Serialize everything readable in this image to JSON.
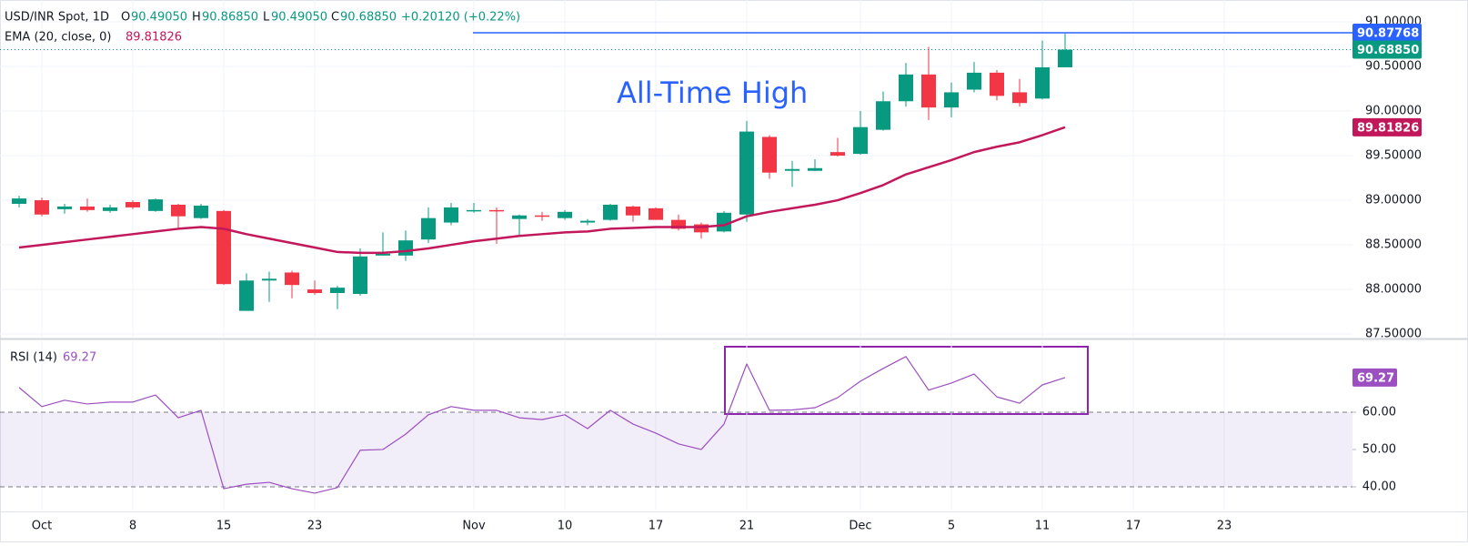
{
  "header": {
    "symbol": "USD/INR Spot, 1D",
    "o": "O",
    "open": "90.49050",
    "h": "H",
    "high": "90.86850",
    "l": "L",
    "low": "90.49050",
    "c": "C",
    "close": "90.68850",
    "change": "+0.20120 (+0.22%)"
  },
  "chart_data": [
    {
      "type": "candlestick",
      "categories": [
        null,
        "Oct",
        null,
        null,
        null,
        "8",
        null,
        null,
        null,
        "15",
        null,
        null,
        null,
        "23",
        null,
        null,
        null,
        null,
        null,
        null,
        "Nov",
        null,
        null,
        null,
        "10",
        null,
        null,
        null,
        "17",
        null,
        null,
        null,
        "21",
        null,
        null,
        null,
        null,
        "Dec",
        null,
        null,
        null,
        "5",
        null,
        null,
        null,
        "11",
        null,
        null,
        null,
        "17",
        null,
        null,
        null,
        "23"
      ],
      "open": [
        88.96,
        89.0,
        88.9,
        88.93,
        88.88,
        88.98,
        88.88,
        88.95,
        88.8,
        88.88,
        87.76,
        88.1,
        88.19,
        88.0,
        87.96,
        87.95,
        88.38,
        88.38,
        88.56,
        88.75,
        88.88,
        88.89,
        88.79,
        88.83,
        88.8,
        88.75,
        88.78,
        88.93,
        88.91,
        88.78,
        88.73,
        88.65,
        88.84,
        89.71,
        89.33,
        89.33,
        89.54,
        89.52,
        89.79,
        90.11,
        90.41,
        90.04,
        90.24,
        90.43,
        90.21,
        90.14,
        90.4905,
        null,
        null,
        null,
        null,
        null,
        null,
        null
      ],
      "high": [
        89.05,
        89.03,
        88.96,
        89.02,
        88.95,
        89.0,
        89.02,
        88.96,
        88.96,
        88.89,
        88.18,
        88.2,
        88.21,
        88.1,
        88.04,
        88.46,
        88.64,
        88.66,
        88.92,
        88.97,
        88.97,
        88.92,
        88.84,
        88.87,
        88.89,
        88.79,
        88.96,
        88.94,
        88.92,
        88.84,
        88.75,
        88.88,
        89.89,
        89.73,
        89.44,
        89.46,
        89.7,
        90.0,
        90.22,
        90.54,
        90.72,
        90.32,
        90.55,
        90.46,
        90.36,
        90.79,
        90.8685,
        null,
        null,
        null,
        null,
        null,
        null,
        null
      ],
      "low": [
        88.92,
        88.82,
        88.85,
        88.87,
        88.86,
        88.9,
        88.87,
        88.68,
        88.79,
        88.05,
        87.76,
        87.86,
        87.9,
        87.94,
        87.78,
        87.93,
        88.38,
        88.32,
        88.52,
        88.72,
        88.86,
        88.51,
        88.6,
        88.77,
        88.78,
        88.72,
        88.77,
        88.76,
        88.78,
        88.66,
        88.57,
        88.64,
        88.76,
        89.24,
        89.15,
        89.33,
        89.49,
        89.51,
        89.78,
        90.05,
        89.9,
        89.93,
        90.21,
        90.12,
        90.05,
        90.13,
        90.4905,
        null,
        null,
        null,
        null,
        null,
        null,
        null
      ],
      "close": [
        89.02,
        88.84,
        88.93,
        88.89,
        88.92,
        88.92,
        89.01,
        88.82,
        88.94,
        88.06,
        88.1,
        88.12,
        88.05,
        87.96,
        88.02,
        88.37,
        88.4,
        88.55,
        88.8,
        88.92,
        88.89,
        88.88,
        88.83,
        88.82,
        88.87,
        88.77,
        88.95,
        88.83,
        88.78,
        88.68,
        88.64,
        88.86,
        89.77,
        89.31,
        89.35,
        89.36,
        89.5,
        89.82,
        90.11,
        90.41,
        90.04,
        90.21,
        90.43,
        90.17,
        90.09,
        90.49,
        90.6885,
        null,
        null,
        null,
        null,
        null,
        null,
        null
      ],
      "up_color": "#089981",
      "down_color": "#f23645",
      "series": [
        {
          "name": "EMA (20, close, 0)",
          "color": "#c2185b",
          "values": [
            88.47,
            88.5,
            88.53,
            88.56,
            88.59,
            88.62,
            88.65,
            88.68,
            88.7,
            88.68,
            88.62,
            88.57,
            88.52,
            88.47,
            88.42,
            88.41,
            88.41,
            88.43,
            88.46,
            88.5,
            88.54,
            88.57,
            88.6,
            88.62,
            88.64,
            88.65,
            88.68,
            88.69,
            88.7,
            88.7,
            88.7,
            88.72,
            88.82,
            88.87,
            88.91,
            88.95,
            89.0,
            89.08,
            89.17,
            89.29,
            89.37,
            89.45,
            89.54,
            89.6,
            89.65,
            89.73,
            89.81826,
            null,
            null,
            null,
            null,
            null,
            null,
            null
          ],
          "last": {
            "value": 89.81826,
            "label": "89.81826"
          }
        }
      ],
      "last_close": {
        "value": 90.6885,
        "label": "90.68850"
      },
      "high_line": {
        "value": 90.87768,
        "label": "90.87768",
        "color": "#2962ff"
      },
      "annotation": "All-Time High",
      "ylim": [
        87.45,
        91.245
      ],
      "yticks": [
        {
          "value": 87.5,
          "label": "87.50000"
        },
        {
          "value": 88.0,
          "label": "88.00000"
        },
        {
          "value": 88.5,
          "label": "88.50000"
        },
        {
          "value": 89.0,
          "label": "89.00000"
        },
        {
          "value": 89.5,
          "label": "89.50000"
        },
        {
          "value": 90.0,
          "label": "90.00000"
        },
        {
          "value": 90.5,
          "label": "90.50000"
        },
        {
          "value": 91.0,
          "label": "91.00000"
        }
      ],
      "grid": true
    },
    {
      "type": "line",
      "series": [
        {
          "name": "RSI (14)",
          "color": "#9c4fc0",
          "values": [
            66.6,
            61.5,
            63.2,
            62.2,
            62.7,
            62.7,
            64.6,
            58.5,
            60.5,
            39.5,
            40.7,
            41.2,
            39.5,
            38.3,
            39.8,
            49.8,
            50.0,
            54.1,
            59.3,
            61.5,
            60.5,
            60.5,
            58.5,
            58.0,
            59.3,
            55.6,
            60.5,
            56.8,
            54.4,
            51.5,
            50.0,
            56.8,
            72.9,
            60.5,
            60.6,
            61.2,
            63.9,
            68.3,
            71.7,
            74.9,
            65.9,
            67.8,
            70.2,
            64.1,
            62.4,
            67.3,
            69.27,
            null,
            null,
            null,
            null,
            null,
            null,
            null
          ],
          "last": {
            "value": 69.27,
            "label": "69.27"
          }
        }
      ],
      "band": [
        40,
        60
      ],
      "band_color": "#7e57c2",
      "ylim": [
        33.9,
        79.0
      ],
      "yticks": [
        {
          "value": 40,
          "label": "40.00"
        },
        {
          "value": 50,
          "label": "50.00"
        },
        {
          "value": 60,
          "label": "60.00"
        }
      ]
    }
  ]
}
